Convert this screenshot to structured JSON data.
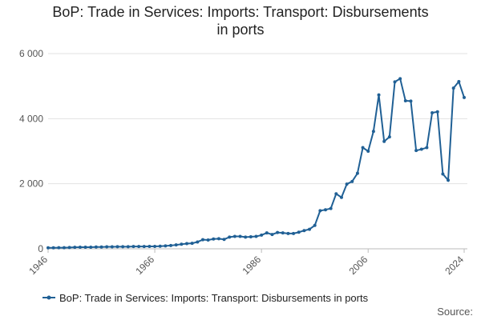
{
  "chart_data": {
    "type": "line",
    "title": "BoP: Trade in Services: Imports: Transport: Disbursements in ports",
    "source": "Source:",
    "x": [
      1946,
      1947,
      1948,
      1949,
      1950,
      1951,
      1952,
      1953,
      1954,
      1955,
      1956,
      1957,
      1958,
      1959,
      1960,
      1961,
      1962,
      1963,
      1964,
      1965,
      1966,
      1967,
      1968,
      1969,
      1970,
      1971,
      1972,
      1973,
      1974,
      1975,
      1976,
      1977,
      1978,
      1979,
      1980,
      1981,
      1982,
      1983,
      1984,
      1985,
      1986,
      1987,
      1988,
      1989,
      1990,
      1991,
      1992,
      1993,
      1994,
      1995,
      1996,
      1997,
      1998,
      1999,
      2000,
      2001,
      2002,
      2003,
      2004,
      2005,
      2006,
      2007,
      2008,
      2009,
      2010,
      2011,
      2012,
      2013,
      2014,
      2015,
      2016,
      2017,
      2018,
      2019,
      2020,
      2021,
      2022,
      2023,
      2024
    ],
    "series": [
      {
        "name": "BoP: Trade in Services: Imports: Transport: Disbursements in ports",
        "color": "#206095",
        "values": [
          30,
          30,
          35,
          35,
          40,
          45,
          50,
          50,
          50,
          55,
          55,
          60,
          60,
          65,
          65,
          65,
          70,
          70,
          70,
          75,
          75,
          80,
          90,
          100,
          120,
          140,
          160,
          170,
          210,
          280,
          270,
          300,
          310,
          290,
          360,
          380,
          380,
          360,
          370,
          380,
          420,
          490,
          440,
          500,
          490,
          470,
          470,
          510,
          560,
          600,
          720,
          1170,
          1200,
          1240,
          1690,
          1580,
          1990,
          2070,
          2320,
          3110,
          3000,
          3610,
          4730,
          3300,
          3440,
          5130,
          5230,
          4550,
          4540,
          3020,
          3060,
          3110,
          4180,
          4210,
          2300,
          2110,
          4940,
          5140,
          4650
        ]
      }
    ],
    "xlim": [
      1946,
      2024
    ],
    "xticks": [
      1946,
      1966,
      1986,
      2006,
      2024
    ],
    "ylim": [
      0,
      6000
    ],
    "yticks": [
      0,
      {
        "value": 2000,
        "label": "2 000"
      },
      {
        "value": 4000,
        "label": "4 000"
      },
      {
        "value": 6000,
        "label": "6 000"
      }
    ],
    "grid": true
  }
}
